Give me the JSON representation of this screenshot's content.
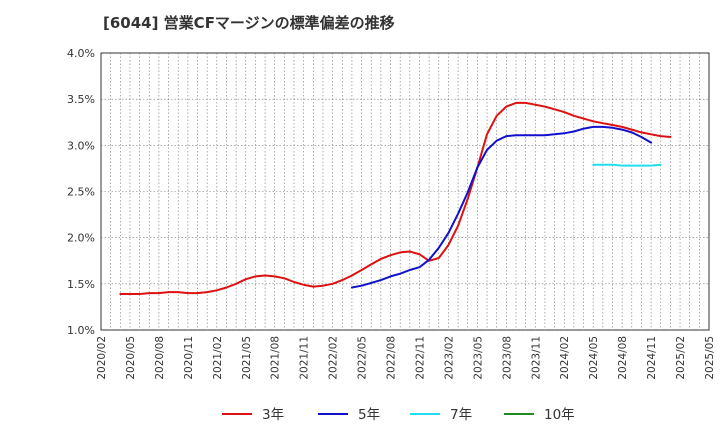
{
  "chart_data": {
    "type": "line",
    "title": "[6044]  営業CFマージンの標準偏差の推移",
    "xlabel": "",
    "ylabel": "",
    "ylim": [
      1.0,
      4.0
    ],
    "y_ticks": [
      "1.0%",
      "1.5%",
      "2.0%",
      "2.5%",
      "3.0%",
      "3.5%",
      "4.0%"
    ],
    "y_tick_values": [
      1.0,
      1.5,
      2.0,
      2.5,
      3.0,
      3.5,
      4.0
    ],
    "x_ticks": [
      "2020/02",
      "2020/05",
      "2020/08",
      "2020/11",
      "2021/02",
      "2021/05",
      "2021/08",
      "2021/11",
      "2022/02",
      "2022/05",
      "2022/08",
      "2022/11",
      "2023/02",
      "2023/05",
      "2023/08",
      "2023/11",
      "2024/02",
      "2024/05",
      "2024/08",
      "2024/11",
      "2025/02",
      "2025/05"
    ],
    "x_range": [
      0,
      63
    ],
    "grid": true,
    "legend_position": "bottom",
    "series": [
      {
        "name": "3年",
        "color": "#dd1111",
        "start_index": 2,
        "values": [
          1.39,
          1.39,
          1.39,
          1.4,
          1.4,
          1.41,
          1.41,
          1.4,
          1.4,
          1.41,
          1.43,
          1.46,
          1.5,
          1.55,
          1.58,
          1.59,
          1.58,
          1.56,
          1.52,
          1.49,
          1.47,
          1.48,
          1.5,
          1.54,
          1.59,
          1.65,
          1.71,
          1.77,
          1.81,
          1.84,
          1.85,
          1.82,
          1.75,
          1.78,
          1.92,
          2.13,
          2.42,
          2.76,
          3.12,
          3.32,
          3.42,
          3.46,
          3.46,
          3.44,
          3.42,
          3.39,
          3.36,
          3.32,
          3.29,
          3.26,
          3.24,
          3.22,
          3.2,
          3.17,
          3.14,
          3.12,
          3.1,
          3.09
        ]
      },
      {
        "name": "5年",
        "color": "#1111cc",
        "start_index": 26,
        "values": [
          1.46,
          1.48,
          1.51,
          1.54,
          1.58,
          1.61,
          1.65,
          1.68,
          1.76,
          1.89,
          2.05,
          2.26,
          2.49,
          2.76,
          2.95,
          3.05,
          3.1,
          3.11,
          3.11,
          3.11,
          3.11,
          3.12,
          3.13,
          3.15,
          3.18,
          3.2,
          3.2,
          3.19,
          3.17,
          3.14,
          3.09,
          3.03
        ]
      },
      {
        "name": "7年",
        "color": "#22ddee",
        "start_index": 51,
        "values": [
          2.79,
          2.79,
          2.79,
          2.78,
          2.78,
          2.78,
          2.78,
          2.79
        ]
      },
      {
        "name": "10年",
        "color": "#228822",
        "start_index": 0,
        "values": []
      }
    ]
  }
}
